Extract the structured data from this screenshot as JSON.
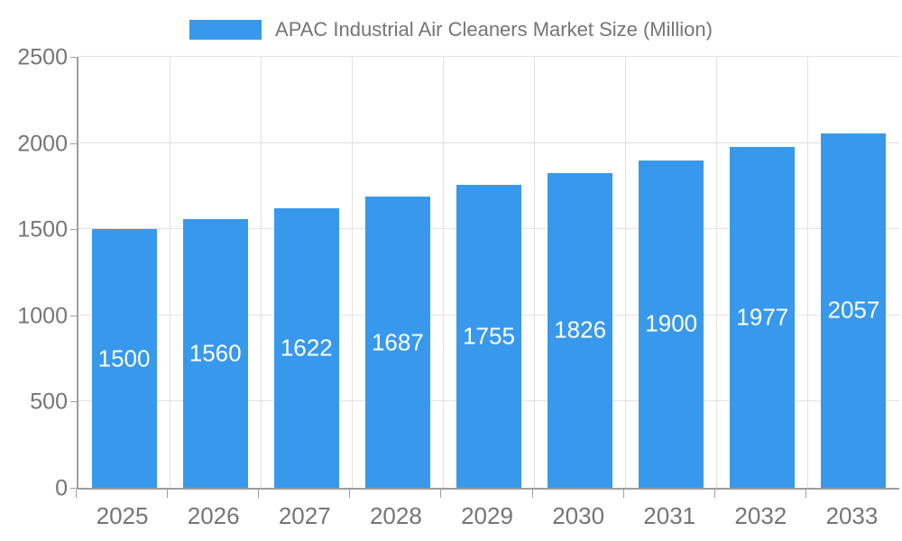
{
  "legend": {
    "series_label": "APAC Industrial Air Cleaners Market Size (Million)"
  },
  "colors": {
    "bar": "#3899EC",
    "axis": "#9e9e9e",
    "grid": "#e2e2e2",
    "text": "#757575",
    "value_label": "#ffffff"
  },
  "chart_data": {
    "type": "bar",
    "title": "APAC Industrial Air Cleaners Market Size (Million)",
    "categories": [
      "2025",
      "2026",
      "2027",
      "2028",
      "2029",
      "2030",
      "2031",
      "2032",
      "2033"
    ],
    "values": [
      1500,
      1560,
      1622,
      1687,
      1755,
      1826,
      1900,
      1977,
      2057
    ],
    "value_labels": [
      "1500",
      "1560",
      "1622",
      "1687",
      "1755",
      "1826",
      "1900",
      "1977",
      "2057"
    ],
    "xlabel": "",
    "ylabel": "",
    "ylim": [
      0,
      2500
    ],
    "yticks": [
      0,
      500,
      1000,
      1500,
      2000,
      2500
    ],
    "ytick_labels": [
      "0",
      "500",
      "1000",
      "1500",
      "2000",
      "2500"
    ],
    "grid": "on",
    "legend_position": "top-center"
  }
}
